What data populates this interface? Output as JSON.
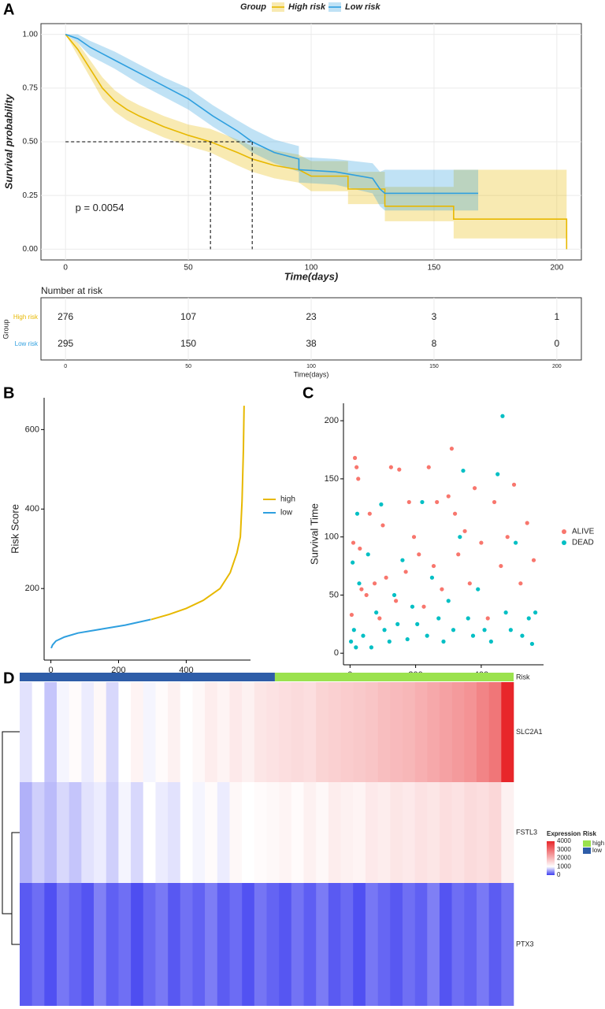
{
  "chart_data": [
    {
      "type": "line",
      "panel": "A",
      "legend_title": "Group",
      "ylabel": "Survival probability",
      "xlabel": "Time(days)",
      "annotation": "p = 0.0054",
      "xlim": [
        -10,
        210
      ],
      "ylim": [
        -0.05,
        1.05
      ],
      "xticks": [
        0,
        50,
        100,
        150,
        200
      ],
      "yticks": [
        {
          "value": 0,
          "label": "0.00"
        },
        {
          "value": 0.25,
          "label": "0.25"
        },
        {
          "value": 0.5,
          "label": "0.50"
        },
        {
          "value": 0.75,
          "label": "0.75"
        },
        {
          "value": 1,
          "label": "1.00"
        }
      ],
      "grid": true,
      "median_level": 0.5,
      "series": [
        {
          "name": "High risk",
          "color": "#E7B800",
          "median": 59,
          "x": [
            0,
            5,
            10,
            15,
            20,
            25,
            30,
            40,
            50,
            59,
            70,
            76,
            85,
            95,
            100,
            115,
            115,
            130,
            130,
            158,
            158,
            204,
            204
          ],
          "values": [
            1,
            0.93,
            0.84,
            0.75,
            0.69,
            0.65,
            0.62,
            0.57,
            0.53,
            0.5,
            0.45,
            0.42,
            0.39,
            0.37,
            0.34,
            0.34,
            0.28,
            0.28,
            0.2,
            0.2,
            0.14,
            0.14,
            0
          ],
          "upper": [
            1,
            0.96,
            0.88,
            0.8,
            0.74,
            0.7,
            0.67,
            0.62,
            0.58,
            0.56,
            0.51,
            0.48,
            0.46,
            0.44,
            0.41,
            0.41,
            0.36,
            0.36,
            0.29,
            0.29,
            0.37,
            0.37,
            0.37
          ],
          "lower": [
            1,
            0.9,
            0.8,
            0.7,
            0.64,
            0.6,
            0.57,
            0.52,
            0.48,
            0.45,
            0.39,
            0.36,
            0.33,
            0.31,
            0.27,
            0.27,
            0.21,
            0.21,
            0.13,
            0.13,
            0.05,
            0.05,
            0.05
          ]
        },
        {
          "name": "Low risk",
          "color": "#2E9FDF",
          "median": 76,
          "x": [
            0,
            5,
            10,
            20,
            30,
            40,
            50,
            60,
            70,
            76,
            85,
            95,
            95,
            110,
            125,
            128,
            130,
            168
          ],
          "values": [
            1,
            0.98,
            0.94,
            0.88,
            0.82,
            0.76,
            0.7,
            0.62,
            0.55,
            0.5,
            0.45,
            0.42,
            0.37,
            0.36,
            0.33,
            0.28,
            0.26,
            0.26
          ],
          "upper": [
            1,
            1,
            0.97,
            0.92,
            0.86,
            0.8,
            0.75,
            0.67,
            0.6,
            0.56,
            0.51,
            0.48,
            0.43,
            0.42,
            0.4,
            0.36,
            0.37,
            0.37
          ],
          "lower": [
            1,
            0.96,
            0.9,
            0.84,
            0.77,
            0.71,
            0.65,
            0.57,
            0.5,
            0.45,
            0.4,
            0.36,
            0.31,
            0.3,
            0.26,
            0.2,
            0.18,
            0.18
          ]
        }
      ]
    },
    {
      "type": "table",
      "title": "Number at risk",
      "ylabel": "Group",
      "xlabel": "Time(days)",
      "xlim": [
        -10,
        210
      ],
      "xticks": [
        0,
        50,
        100,
        150,
        200
      ],
      "x": [
        0,
        50,
        100,
        150,
        200
      ],
      "series": [
        {
          "name": "High risk",
          "color": "#E7B800",
          "values": [
            276,
            107,
            23,
            3,
            1
          ]
        },
        {
          "name": "Low risk",
          "color": "#2E9FDF",
          "values": [
            295,
            150,
            38,
            8,
            0
          ]
        }
      ]
    },
    {
      "type": "line",
      "panel": "B",
      "ylabel": "Risk Score",
      "xlim": [
        -20,
        590
      ],
      "ylim": [
        20,
        680
      ],
      "xticks": [
        0,
        200,
        400
      ],
      "yticks": [
        200,
        400,
        600
      ],
      "series": [
        {
          "name": "high",
          "color": "#E7B800",
          "x": [
            296,
            350,
            400,
            450,
            500,
            530,
            550,
            560,
            565,
            569,
            571
          ],
          "values": [
            122,
            135,
            150,
            170,
            200,
            240,
            290,
            330,
            420,
            550,
            660
          ]
        },
        {
          "name": "low",
          "color": "#2E9FDF",
          "x": [
            1,
            5,
            15,
            40,
            80,
            150,
            220,
            295
          ],
          "values": [
            50,
            58,
            68,
            78,
            88,
            98,
            108,
            122
          ]
        }
      ]
    },
    {
      "type": "scatter",
      "panel": "C",
      "ylabel": "Survival Time",
      "xlim": [
        -20,
        590
      ],
      "ylim": [
        -10,
        215
      ],
      "xticks": [
        0,
        200,
        400
      ],
      "yticks": [
        0,
        50,
        100,
        150,
        200
      ],
      "series": [
        {
          "name": "ALIVE",
          "color": "#F8766D",
          "x": [
            5,
            10,
            15,
            20,
            25,
            30,
            35,
            50,
            60,
            75,
            90,
            100,
            110,
            125,
            140,
            150,
            170,
            180,
            195,
            210,
            225,
            240,
            255,
            265,
            280,
            300,
            310,
            320,
            330,
            350,
            365,
            380,
            400,
            420,
            440,
            460,
            480,
            500,
            520,
            540,
            560
          ],
          "values": [
            33,
            95,
            168,
            160,
            150,
            90,
            55,
            50,
            120,
            60,
            30,
            110,
            65,
            160,
            45,
            158,
            70,
            130,
            100,
            85,
            40,
            160,
            75,
            130,
            55,
            135,
            176,
            120,
            85,
            105,
            60,
            142,
            95,
            30,
            130,
            75,
            100,
            145,
            60,
            112,
            80
          ]
        },
        {
          "name": "DEAD",
          "color": "#00BFC4",
          "x": [
            3,
            8,
            12,
            18,
            22,
            28,
            40,
            55,
            65,
            80,
            95,
            105,
            120,
            135,
            145,
            160,
            175,
            190,
            205,
            220,
            235,
            250,
            270,
            285,
            300,
            315,
            335,
            345,
            360,
            375,
            390,
            410,
            430,
            450,
            465,
            475,
            490,
            505,
            525,
            545,
            555,
            565
          ],
          "values": [
            10,
            78,
            20,
            5,
            120,
            60,
            15,
            85,
            5,
            35,
            128,
            20,
            10,
            50,
            25,
            80,
            12,
            40,
            25,
            130,
            15,
            65,
            30,
            10,
            45,
            20,
            100,
            157,
            30,
            15,
            55,
            20,
            10,
            154,
            204,
            35,
            20,
            95,
            15,
            30,
            8,
            35
          ]
        }
      ]
    },
    {
      "type": "heatmap",
      "panel": "D",
      "annotation_title": "Risk",
      "legend_title": "Expression",
      "legend_risk_title": "Risk",
      "clim": [
        0,
        4000
      ],
      "cticks": [
        0,
        1000,
        2000,
        3000,
        4000
      ],
      "colorscale": [
        {
          "value": 0,
          "color": "#3d3df0"
        },
        {
          "value": 1000,
          "color": "#ffffff"
        },
        {
          "value": 4000,
          "color": "#e8262a"
        }
      ],
      "risk_groups": [
        {
          "name": "low",
          "color": "#2E5DA8",
          "n": 295
        },
        {
          "name": "high",
          "color": "#9BE24E",
          "n": 276
        }
      ],
      "rows": [
        {
          "name": "SLC2A1",
          "values": [
            850,
            1000,
            700,
            950,
            1050,
            900,
            1100,
            800,
            1000,
            1150,
            950,
            1050,
            1200,
            1000,
            1100,
            1250,
            1150,
            1300,
            1200,
            1350,
            1400,
            1450,
            1500,
            1450,
            1600,
            1650,
            1700,
            1750,
            1800,
            1900,
            1950,
            2000,
            2100,
            2200,
            2300,
            2400,
            2500,
            2700,
            2900,
            4000
          ]
        },
        {
          "name": "FSTL3",
          "values": [
            600,
            750,
            650,
            800,
            700,
            850,
            900,
            750,
            950,
            800,
            1000,
            900,
            850,
            1000,
            950,
            1050,
            900,
            1100,
            1000,
            1050,
            1100,
            1150,
            1050,
            1200,
            1100,
            1250,
            1200,
            1150,
            1300,
            1250,
            1350,
            1300,
            1400,
            1350,
            1450,
            1400,
            1500,
            1450,
            1550,
            1200
          ]
        },
        {
          "name": "PTX3",
          "values": [
            150,
            250,
            100,
            300,
            200,
            120,
            350,
            180,
            260,
            90,
            220,
            310,
            140,
            270,
            190,
            330,
            160,
            240,
            110,
            290,
            200,
            130,
            280,
            170,
            320,
            150,
            230,
            100,
            300,
            210,
            140,
            260,
            180,
            340,
            120,
            250,
            190,
            310,
            160,
            280
          ]
        }
      ]
    }
  ]
}
